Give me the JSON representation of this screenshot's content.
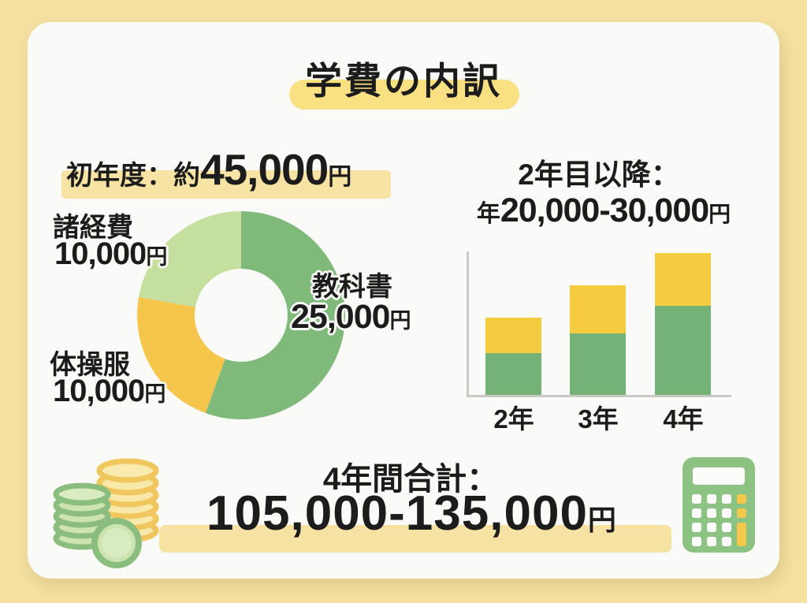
{
  "page": {
    "title": "学費の内訳"
  },
  "first_year": {
    "heading_prefix": "初年度：約",
    "heading_amount": "45,000",
    "heading_unit": "円",
    "labels": {
      "misc": {
        "name": "諸経費",
        "amount": "10,000",
        "unit": "円"
      },
      "textbook": {
        "name": "教科書",
        "amount": "25,000",
        "unit": "円"
      },
      "gym": {
        "name": "体操服",
        "amount": "10,000",
        "unit": "円"
      }
    }
  },
  "later_years": {
    "heading": "2年目以降：",
    "amount_prefix": "年",
    "amount": "20,000-30,000",
    "unit": "円",
    "bar_labels": [
      "2年",
      "3年",
      "4年"
    ]
  },
  "total": {
    "heading": "4年間合計：",
    "amount": "105,000-135,000",
    "unit": "円"
  },
  "icons": {
    "left": "coins-icon",
    "right": "calculator-icon"
  },
  "colors": {
    "page_background": "#F4E0A0",
    "card_background": "#FAFAF8",
    "text": "#1c1c1c",
    "title_highlight": "#F8E083",
    "line_highlight": "#F7E4A4",
    "donut_green": "#7FBA7A",
    "donut_yellow": "#F6C54B",
    "donut_light_green": "#C4DF9E",
    "bar_green": "#74B277",
    "bar_yellow": "#F5CB40",
    "axis_gray": "#C9C9C6"
  },
  "chart_data": [
    {
      "type": "pie",
      "subtype": "donut",
      "title": "初年度：約45,000円",
      "labels": [
        "教科書",
        "体操服",
        "諸経費"
      ],
      "values": [
        25000,
        10000,
        10000
      ],
      "unit": "円",
      "colors": [
        "#7FBA7A",
        "#F6C54B",
        "#C4DF9E"
      ],
      "start_angle_deg": 0,
      "direction": "clockwise",
      "inner_radius_ratio": 0.45,
      "legend_position": "around-labels"
    },
    {
      "type": "bar",
      "subtype": "stacked",
      "title": "2年目以降：年20,000-30,000円",
      "categories": [
        "2年",
        "3年",
        "4年"
      ],
      "series": [
        {
          "name": "green-base",
          "color": "#74B277",
          "values": [
            53,
            78,
            113
          ]
        },
        {
          "name": "yellow-top",
          "color": "#F5CB40",
          "values": [
            45,
            61,
            67
          ]
        }
      ],
      "value_unit": "relative-height-px",
      "ylim": [
        0,
        181
      ],
      "grid": false,
      "axis_value_labels": false
    }
  ]
}
